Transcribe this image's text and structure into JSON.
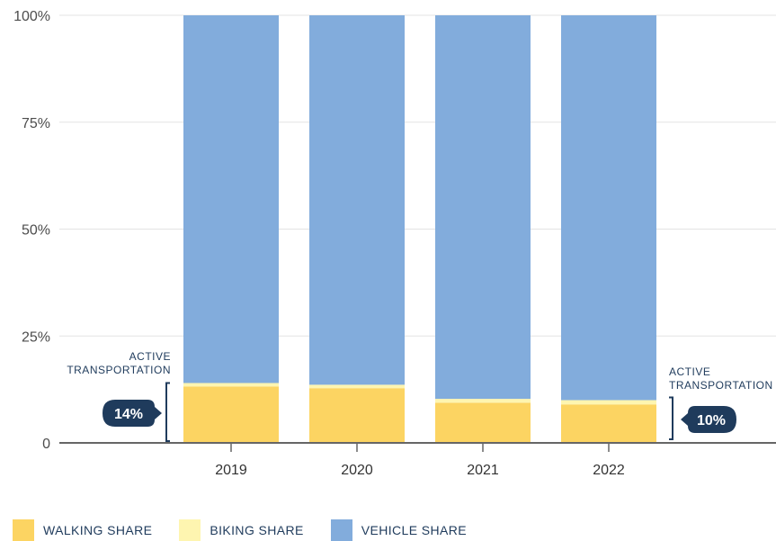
{
  "chart_data": {
    "type": "bar",
    "stacked": true,
    "categories": [
      "2019",
      "2020",
      "2021",
      "2022"
    ],
    "series": [
      {
        "name": "WALKING SHARE",
        "color": "#fcd462",
        "values": [
          13.2,
          12.8,
          9.4,
          9.0
        ]
      },
      {
        "name": "BIKING SHARE",
        "color": "#fef5b0",
        "values": [
          0.8,
          0.8,
          0.9,
          1.0
        ]
      },
      {
        "name": "VEHICLE SHARE",
        "color": "#82acdc",
        "values": [
          86.0,
          86.4,
          89.7,
          90.0
        ]
      }
    ],
    "y_ticks": [
      "0",
      "25%",
      "50%",
      "75%",
      "100%"
    ],
    "ylim": [
      0,
      100
    ],
    "grid": true,
    "legend_position": "bottom-left",
    "annotations": [
      {
        "label_line1": "ACTIVE",
        "label_line2": "TRANSPORTATION",
        "value": "14%",
        "category": "2019",
        "side": "left"
      },
      {
        "label_line1": "ACTIVE",
        "label_line2": "TRANSPORTATION",
        "value": "10%",
        "category": "2022",
        "side": "right"
      }
    ]
  },
  "legend": {
    "walking": "WALKING SHARE",
    "biking": "BIKING SHARE",
    "vehicle": "VEHICLE SHARE"
  },
  "colors": {
    "walking": "#fcd462",
    "biking": "#fef5b0",
    "vehicle": "#82acdc",
    "callout": "#1f3b5c"
  }
}
